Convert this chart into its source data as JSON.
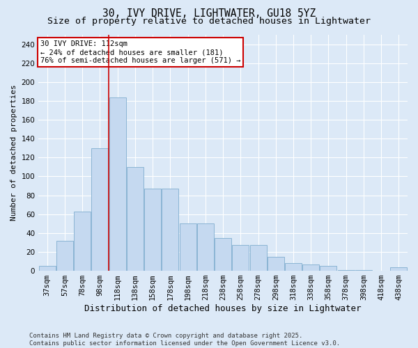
{
  "title": "30, IVY DRIVE, LIGHTWATER, GU18 5YZ",
  "subtitle": "Size of property relative to detached houses in Lightwater",
  "xlabel": "Distribution of detached houses by size in Lightwater",
  "ylabel": "Number of detached properties",
  "bar_labels": [
    "37sqm",
    "57sqm",
    "78sqm",
    "98sqm",
    "118sqm",
    "138sqm",
    "158sqm",
    "178sqm",
    "198sqm",
    "218sqm",
    "238sqm",
    "258sqm",
    "278sqm",
    "298sqm",
    "318sqm",
    "338sqm",
    "358sqm",
    "378sqm",
    "398sqm",
    "418sqm",
    "438sqm"
  ],
  "bar_values": [
    5,
    32,
    63,
    130,
    184,
    110,
    87,
    87,
    50,
    50,
    35,
    27,
    27,
    15,
    8,
    7,
    5,
    1,
    1,
    0,
    4
  ],
  "bar_color": "#c5d9f0",
  "bar_edge_color": "#8ab4d4",
  "background_color": "#dce9f7",
  "plot_bg_color": "#dce9f7",
  "vline_color": "#cc0000",
  "annotation_text": "30 IVY DRIVE: 112sqm\n← 24% of detached houses are smaller (181)\n76% of semi-detached houses are larger (571) →",
  "annotation_box_color": "#ffffff",
  "annotation_box_edge": "#cc0000",
  "ylim": [
    0,
    250
  ],
  "yticks": [
    0,
    20,
    40,
    60,
    80,
    100,
    120,
    140,
    160,
    180,
    200,
    220,
    240
  ],
  "footer": "Contains HM Land Registry data © Crown copyright and database right 2025.\nContains public sector information licensed under the Open Government Licence v3.0.",
  "title_fontsize": 10.5,
  "subtitle_fontsize": 9.5,
  "xlabel_fontsize": 9,
  "ylabel_fontsize": 8,
  "tick_fontsize": 7.5,
  "footer_fontsize": 6.5
}
